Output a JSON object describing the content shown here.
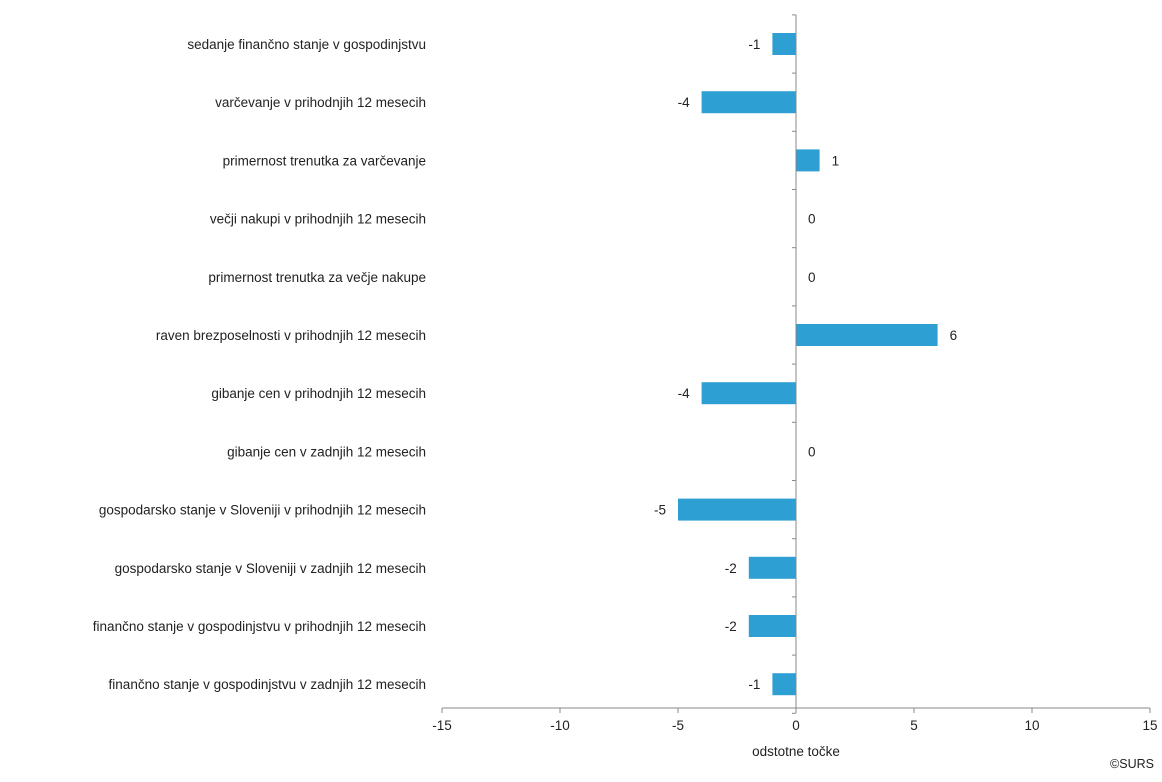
{
  "chart_data": {
    "type": "bar",
    "orientation": "horizontal",
    "categories": [
      "sedanje finančno stanje v gospodinjstvu",
      "varčevanje v prihodnjih 12 mesecih",
      "primernost trenutka za varčevanje",
      "večji nakupi v prihodnjih 12 mesecih",
      "primernost trenutka za večje nakupe",
      "raven brezposelnosti v prihodnjih 12 mesecih",
      "gibanje cen v prihodnjih 12 mesecih",
      "gibanje cen v zadnjih 12 mesecih",
      "gospodarsko stanje v Sloveniji v prihodnjih 12 mesecih",
      "gospodarsko stanje v Sloveniji v zadnjih 12 mesecih",
      "finančno stanje v gospodinjstvu v prihodnjih 12 mesecih",
      "finančno stanje v gospodinjstvu v zadnjih 12 mesecih"
    ],
    "values": [
      -1,
      -4,
      1,
      0,
      0,
      6,
      -4,
      0,
      -5,
      -2,
      -2,
      -1
    ],
    "xlabel": "odstotne točke",
    "xlim": [
      -15,
      15
    ],
    "xticks": [
      -15,
      -10,
      -5,
      0,
      5,
      10,
      15
    ],
    "grid": false,
    "legend": "none",
    "colors": {
      "bar": "#2E9FD3",
      "axis": "#888888",
      "text": "#222222"
    }
  },
  "footer": {
    "copyright": "©SURS"
  }
}
